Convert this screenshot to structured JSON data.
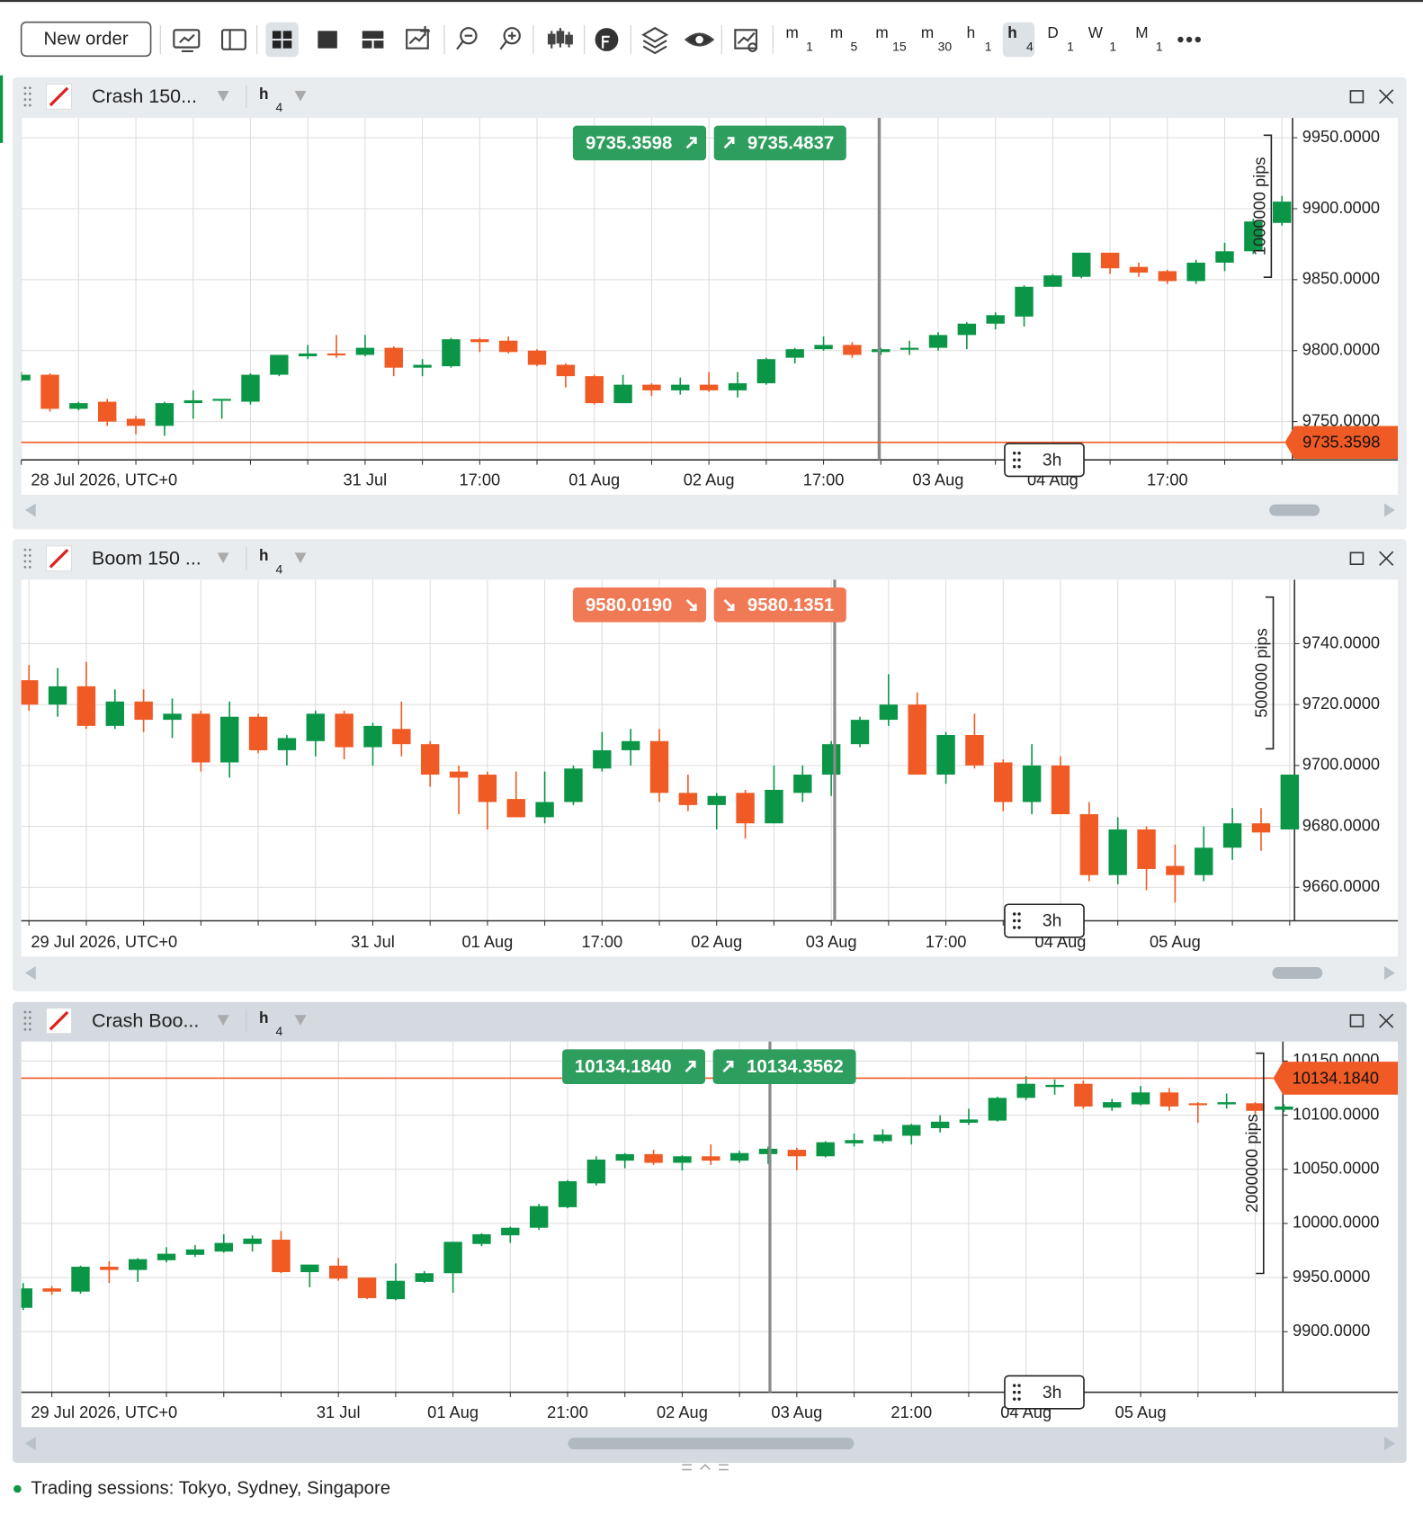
{
  "toolbar": {
    "new_order": "New order",
    "timeframes": [
      {
        "letter": "m",
        "sub": "1"
      },
      {
        "letter": "m",
        "sub": "5"
      },
      {
        "letter": "m",
        "sub": "15"
      },
      {
        "letter": "m",
        "sub": "30"
      },
      {
        "letter": "h",
        "sub": "1"
      },
      {
        "letter": "h",
        "sub": "4"
      },
      {
        "letter": "D",
        "sub": "1"
      },
      {
        "letter": "W",
        "sub": "1"
      },
      {
        "letter": "M",
        "sub": "1"
      }
    ],
    "active_timeframe": 5
  },
  "chart_data": [
    {
      "type": "candlestick",
      "symbol": "Crash 150...",
      "timeframe": {
        "letter": "h",
        "sub": "4"
      },
      "date_label": "28 Jul 2026, UTC+0",
      "categories": [
        null,
        null,
        null,
        null,
        null,
        null,
        null,
        null,
        null,
        null,
        null,
        null,
        "31 Jul",
        null,
        null,
        null,
        "17:00",
        null,
        null,
        null,
        "01 Aug",
        null,
        null,
        null,
        "02 Aug",
        null,
        null,
        null,
        "17:00",
        null,
        null,
        null,
        "03 Aug",
        null,
        null,
        null,
        "04 Aug",
        null,
        null,
        null,
        "17:00",
        null,
        null,
        null,
        null
      ],
      "open": [
        9779,
        9783,
        9759,
        9764,
        9752,
        9747,
        9763,
        9765,
        9764,
        9783,
        9796,
        9798,
        9797,
        9802,
        9788,
        9789,
        9808,
        9807,
        9800,
        9790,
        9782,
        9763,
        9776,
        9772,
        9776,
        9772,
        9777,
        9795,
        9801,
        9804,
        9799,
        9801,
        9802,
        9811,
        9819,
        9824,
        9845,
        9852,
        9869,
        9859,
        9856,
        9849,
        9862,
        9870,
        9890
      ],
      "high": [
        9785,
        9784,
        9764,
        9766,
        9754,
        9764,
        9772,
        9766,
        9784,
        9797,
        9804,
        9811,
        9811,
        9803,
        9794,
        9809,
        9809,
        9810,
        9801,
        9791,
        9783,
        9783,
        9777,
        9781,
        9785,
        9785,
        9795,
        9802,
        9810,
        9806,
        9802,
        9807,
        9813,
        9820,
        9827,
        9846,
        9854,
        9869,
        9869,
        9862,
        9857,
        9864,
        9876,
        9893,
        9909
      ],
      "low": [
        9778,
        9757,
        9758,
        9747,
        9741,
        9740,
        9752,
        9752,
        9762,
        9782,
        9794,
        9795,
        9796,
        9782,
        9782,
        9788,
        9799,
        9798,
        9789,
        9774,
        9762,
        9763,
        9768,
        9769,
        9771,
        9767,
        9776,
        9791,
        9800,
        9795,
        9797,
        9797,
        9800,
        9801,
        9815,
        9817,
        9845,
        9851,
        9854,
        9852,
        9847,
        9847,
        9856,
        9868,
        9888
      ],
      "close": [
        9783,
        9759,
        9763,
        9750,
        9747,
        9763,
        9765,
        9766,
        9783,
        9797,
        9798,
        9797,
        9802,
        9788,
        9790,
        9808,
        9806,
        9799,
        9790,
        9782,
        9763,
        9776,
        9772,
        9776,
        9772,
        9777,
        9794,
        9801,
        9804,
        9797,
        9801,
        9802,
        9811,
        9819,
        9825,
        9845,
        9853,
        9869,
        9858,
        9855,
        9849,
        9862,
        9870,
        9891,
        9905
      ],
      "up_color": "#0b9647",
      "down_color": "#f05a24",
      "ylim": [
        9723,
        9964
      ],
      "yticks": [
        {
          "value": 9950,
          "label": "9950.0000"
        },
        {
          "value": 9900,
          "label": "9900.0000"
        },
        {
          "value": 9850,
          "label": "9850.0000"
        },
        {
          "value": 9800,
          "label": "9800.0000"
        },
        {
          "value": 9750,
          "label": "9750.0000"
        }
      ],
      "grid": true,
      "bid": 9735.3598,
      "ask": 9735.4837,
      "quote_color": "#2e9e5e",
      "quote_direction": "up",
      "price_line_color": "#f05a24",
      "pip_ruler": "1000000 pips",
      "crosshair_label": "3h"
    },
    {
      "type": "candlestick",
      "symbol": "Boom 150 ...",
      "timeframe": {
        "letter": "h",
        "sub": "4"
      },
      "date_label": "29 Jul 2026, UTC+0",
      "categories": [
        null,
        null,
        null,
        null,
        null,
        null,
        null,
        null,
        null,
        null,
        null,
        null,
        "31 Jul",
        null,
        null,
        null,
        "01 Aug",
        null,
        null,
        null,
        "17:00",
        null,
        null,
        null,
        "02 Aug",
        null,
        null,
        null,
        "03 Aug",
        null,
        null,
        null,
        "17:00",
        null,
        null,
        null,
        "04 Aug",
        null,
        null,
        null,
        "05 Aug",
        null,
        null,
        null,
        null
      ],
      "open": [
        9728,
        9720,
        9726,
        9713,
        9721,
        9715,
        9717,
        9701,
        9716,
        9705,
        9708,
        9717,
        9706,
        9712,
        9707,
        9698,
        9697,
        9689,
        9683,
        9688,
        9699,
        9705,
        9708,
        9691,
        9687,
        9691,
        9681,
        9691,
        9697,
        9707,
        9715,
        9720,
        9697,
        9710,
        9701,
        9688,
        9700,
        9684,
        9664,
        9679,
        9667,
        9664,
        9673,
        9681,
        9679
      ],
      "high": [
        9733,
        9732,
        9734,
        9725,
        9725,
        9722,
        9718,
        9721,
        9717,
        9710,
        9718,
        9718,
        9714,
        9721,
        9708,
        9700,
        9698,
        9698,
        9698,
        9700,
        9711,
        9712,
        9712,
        9697,
        9691,
        9692,
        9700,
        9700,
        9708,
        9716,
        9730,
        9724,
        9711,
        9717,
        9702,
        9707,
        9703,
        9688,
        9683,
        9680,
        9674,
        9680,
        9686,
        9686,
        9697
      ],
      "low": [
        9718,
        9716,
        9712,
        9712,
        9711,
        9709,
        9698,
        9696,
        9704,
        9700,
        9703,
        9702,
        9700,
        9703,
        9693,
        9684,
        9679,
        9683,
        9681,
        9687,
        9698,
        9700,
        9688,
        9685,
        9679,
        9676,
        9681,
        9688,
        9690,
        9706,
        9713,
        9697,
        9694,
        9699,
        9685,
        9684,
        9684,
        9662,
        9661,
        9659,
        9655,
        9662,
        9669,
        9672,
        9679
      ],
      "close": [
        9720,
        9726,
        9713,
        9721,
        9715,
        9717,
        9701,
        9716,
        9705,
        9709,
        9717,
        9706,
        9713,
        9707,
        9697,
        9696,
        9688,
        9683,
        9688,
        9699,
        9705,
        9708,
        9691,
        9687,
        9690,
        9681,
        9692,
        9697,
        9707,
        9715,
        9720,
        9697,
        9710,
        9700,
        9688,
        9700,
        9684,
        9664,
        9679,
        9666,
        9664,
        9673,
        9681,
        9678,
        9697
      ],
      "up_color": "#0b9647",
      "down_color": "#f05a24",
      "ylim": [
        9649,
        9761
      ],
      "yticks": [
        {
          "value": 9740,
          "label": "9740.0000"
        },
        {
          "value": 9720,
          "label": "9720.0000"
        },
        {
          "value": 9700,
          "label": "9700.0000"
        },
        {
          "value": 9680,
          "label": "9680.0000"
        },
        {
          "value": 9660,
          "label": "9660.0000"
        }
      ],
      "grid": true,
      "bid": {
        "value": 9580.019,
        "label": "9580.0190"
      },
      "ask": 9580.1351,
      "quote_color": "#f07a55",
      "quote_direction": "down",
      "price_line_color": "#f05a24",
      "pip_ruler": "500000 pips",
      "crosshair_label": "3h"
    },
    {
      "type": "candlestick",
      "symbol": "Crash Boo...",
      "timeframe": {
        "letter": "h",
        "sub": "4"
      },
      "date_label": "29 Jul 2026, UTC+0",
      "categories": [
        null,
        null,
        null,
        null,
        null,
        null,
        null,
        null,
        null,
        null,
        null,
        "31 Jul",
        null,
        null,
        null,
        "01 Aug",
        null,
        null,
        null,
        "21:00",
        null,
        null,
        null,
        "02 Aug",
        null,
        null,
        null,
        "03 Aug",
        null,
        null,
        null,
        "21:00",
        null,
        null,
        null,
        "04 Aug",
        null,
        null,
        null,
        "05 Aug",
        null,
        null,
        null,
        null,
        null
      ],
      "open": [
        9922,
        9940,
        9937,
        9960,
        9957,
        9966,
        9971,
        9974,
        9981,
        9985,
        9955,
        9961,
        9950,
        9930,
        9946,
        9954,
        9981,
        9989,
        9996,
        10015,
        10037,
        10058,
        10064,
        10056,
        10062,
        10058,
        10064,
        10068,
        10062,
        10074,
        10076,
        10081,
        10088,
        10093,
        10095,
        10116,
        10126,
        10129,
        10107,
        10110,
        10121,
        10111,
        10110,
        10111,
        10105
      ],
      "high": [
        9945,
        9942,
        9961,
        9965,
        9968,
        9978,
        9980,
        9990,
        9989,
        9993,
        9962,
        9968,
        9950,
        9963,
        9956,
        9983,
        9991,
        9997,
        10018,
        10040,
        10062,
        10065,
        10068,
        10063,
        10073,
        10067,
        10071,
        10070,
        10076,
        10083,
        10087,
        10092,
        10100,
        10106,
        10117,
        10136,
        10133,
        10132,
        10115,
        10127,
        10125,
        10112,
        10120,
        10112,
        10110
      ],
      "low": [
        9920,
        9934,
        9935,
        9945,
        9946,
        9964,
        9969,
        9973,
        9974,
        9954,
        9941,
        9947,
        9930,
        9929,
        9945,
        9936,
        9979,
        9982,
        9994,
        10014,
        10035,
        10051,
        10054,
        10049,
        10054,
        10056,
        10055,
        10049,
        10061,
        10071,
        10074,
        10073,
        10084,
        10091,
        10094,
        10114,
        10119,
        10106,
        10104,
        10109,
        10104,
        10093,
        10106,
        10100,
        10103
      ],
      "close": [
        9940,
        9937,
        9960,
        9957,
        9967,
        9972,
        9976,
        9982,
        9986,
        9955,
        9962,
        9949,
        9931,
        9947,
        9954,
        9983,
        9990,
        9996,
        10016,
        10039,
        10059,
        10064,
        10056,
        10062,
        10058,
        10065,
        10069,
        10062,
        10075,
        10077,
        10082,
        10091,
        10094,
        10096,
        10116,
        10129,
        10128,
        10108,
        10112,
        10121,
        10108,
        10110,
        10112,
        10104,
        10108
      ],
      "up_color": "#0b9647",
      "down_color": "#f05a24",
      "ylim": [
        9844,
        10168
      ],
      "yticks": [
        {
          "value": 10150,
          "label": "10150.0000"
        },
        {
          "value": 10100,
          "label": "10100.0000"
        },
        {
          "value": 10050,
          "label": "10050.0000"
        },
        {
          "value": 10000,
          "label": "10000.0000"
        },
        {
          "value": 9950,
          "label": "9950.0000"
        },
        {
          "value": 9900,
          "label": "9900.0000"
        }
      ],
      "grid": true,
      "bid": {
        "value": 10134.184,
        "label": "10134.1840"
      },
      "ask": 10134.3562,
      "quote_color": "#2e9e5e",
      "quote_direction": "up",
      "price_line_color": "#f05a24",
      "pip_ruler": "2000000 pips",
      "crosshair_label": "3h"
    }
  ],
  "footer": "Trading sessions: Tokyo, Sydney, Singapore"
}
